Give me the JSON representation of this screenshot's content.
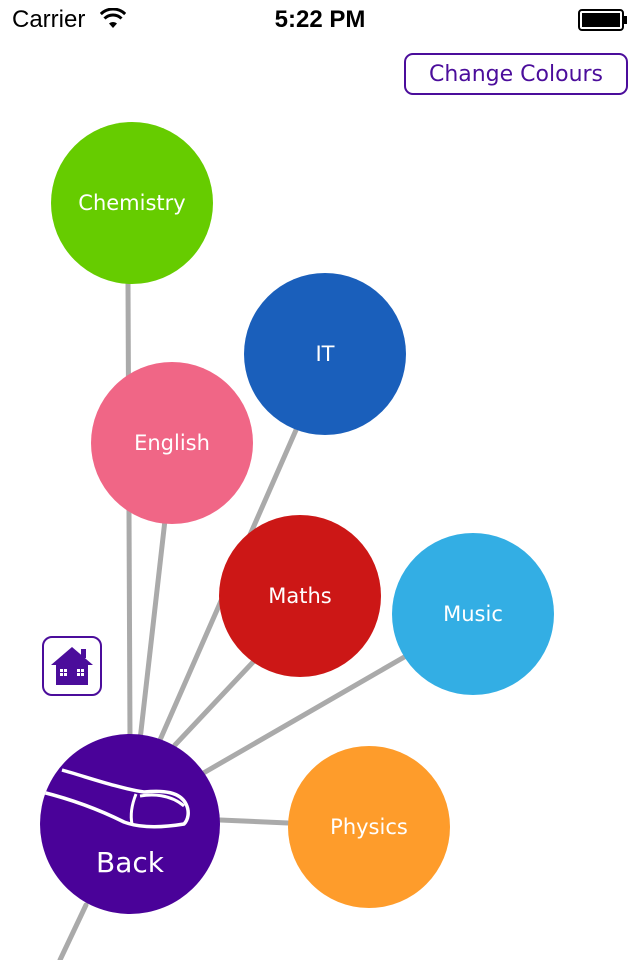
{
  "status_bar": {
    "carrier": "Carrier",
    "time": "5:22 PM"
  },
  "header": {
    "change_colours_label": "Change Colours"
  },
  "nodes": [
    {
      "label": "Chemistry",
      "color": "#66cc00"
    },
    {
      "label": "IT",
      "color": "#1a5fbb"
    },
    {
      "label": "English",
      "color": "#f06686"
    },
    {
      "label": "Maths",
      "color": "#cc1716"
    },
    {
      "label": "Music",
      "color": "#33aee4"
    },
    {
      "label": "Physics",
      "color": "#fe9c2b"
    }
  ],
  "back": {
    "label": "Back",
    "color": "#4a0299"
  },
  "icons": {
    "home": "home-icon",
    "back": "tap-finger-icon",
    "wifi": "wifi-icon",
    "battery": "battery-icon"
  },
  "colors": {
    "accent": "#4b0d9b",
    "connector": "#aaaaaa"
  }
}
